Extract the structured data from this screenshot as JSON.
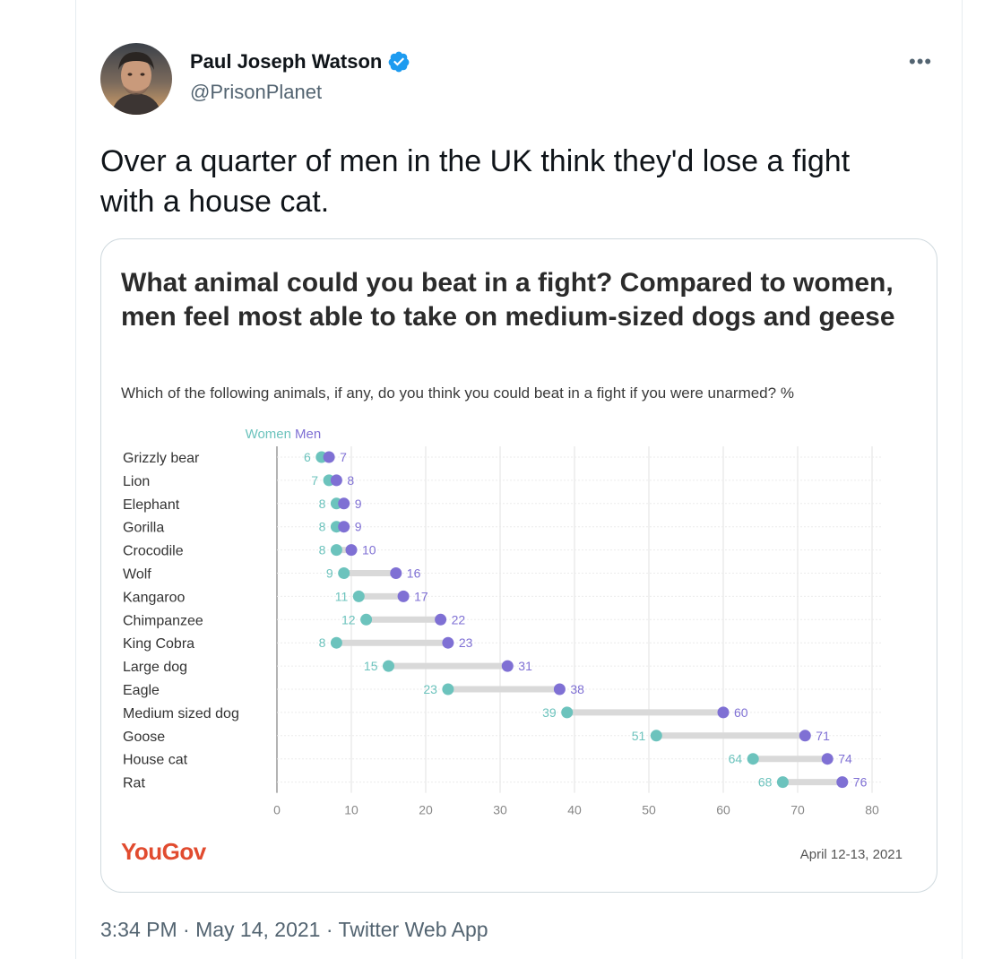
{
  "tweet": {
    "author_name": "Paul Joseph Watson",
    "handle": "@PrisonPlanet",
    "text": "Over a quarter of men in the UK think they'd lose a fight with a house cat.",
    "timestamp": "3:34 PM · May 14, 2021 · Twitter Web App"
  },
  "icons": {
    "verified": "verified-badge-icon",
    "more": "more-options-icon"
  },
  "colors": {
    "women": "#6cc3bd",
    "men": "#7f70d4",
    "brand": "#e14b2f",
    "verified": "#1d9bf0"
  },
  "chart_data": {
    "type": "dumbbell",
    "title": "What animal could you beat in a fight? Compared to women, men feel most able to take on medium-sized dogs and geese",
    "subtitle": "Which of the following animals, if any, do you think you could beat in a fight if you were unarmed? %",
    "legend": [
      "Women",
      "Men"
    ],
    "categories": [
      "Grizzly bear",
      "Lion",
      "Elephant",
      "Gorilla",
      "Crocodile",
      "Wolf",
      "Kangaroo",
      "Chimpanzee",
      "King Cobra",
      "Large dog",
      "Eagle",
      "Medium sized dog",
      "Goose",
      "House cat",
      "Rat"
    ],
    "series": [
      {
        "name": "Women",
        "values": [
          6,
          7,
          8,
          8,
          8,
          9,
          11,
          12,
          8,
          15,
          23,
          39,
          51,
          64,
          68
        ]
      },
      {
        "name": "Men",
        "values": [
          7,
          8,
          9,
          9,
          10,
          16,
          17,
          22,
          23,
          31,
          38,
          60,
          71,
          74,
          76
        ]
      }
    ],
    "xlim": [
      0,
      80
    ],
    "xticks": [
      0,
      10,
      20,
      30,
      40,
      50,
      60,
      70,
      80
    ],
    "grid": true,
    "source": "YouGov",
    "date": "April 12-13, 2021"
  }
}
